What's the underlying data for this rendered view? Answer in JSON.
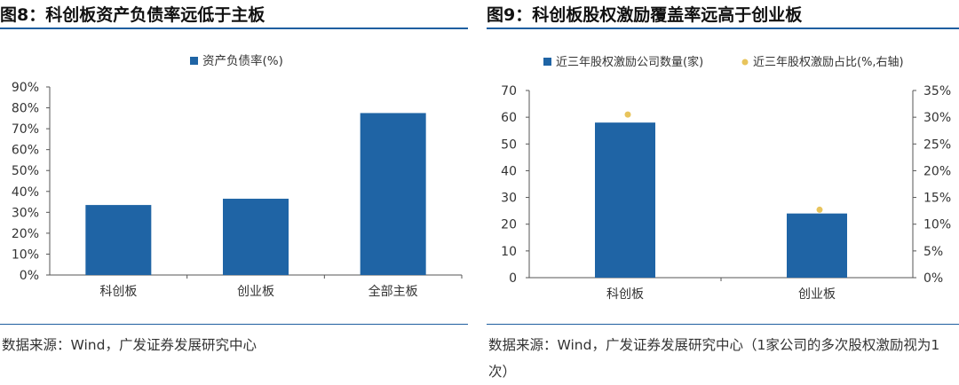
{
  "colors": {
    "bar": "#1f64a5",
    "dot": "#e8c45c",
    "rule": "#1f5fa0"
  },
  "figures": [
    {
      "title": "图8：科创板资产负债率远低于主板",
      "source": "数据来源：Wind，广发证券发展研究中心"
    },
    {
      "title": "图9：科创板股权激励覆盖率远高于创业板",
      "source": "数据来源：Wind，广发证券发展研究中心（1家公司的多次股权激励视为1次）"
    }
  ],
  "chart_data": [
    {
      "type": "bar",
      "categories": [
        "科创板",
        "创业板",
        "全部主板"
      ],
      "series": [
        {
          "name": "资产负债率(%)",
          "values": [
            33.5,
            36.5,
            77.5
          ]
        }
      ],
      "ylim": [
        0,
        90
      ],
      "yticks": [
        "0%",
        "10%",
        "20%",
        "30%",
        "40%",
        "50%",
        "60%",
        "70%",
        "80%",
        "90%"
      ],
      "legend": "top-center"
    },
    {
      "type": "bar",
      "categories": [
        "科创板",
        "创业板"
      ],
      "series": [
        {
          "name": "近三年股权激励公司数量(家)",
          "type": "bar",
          "axis": "left",
          "values": [
            58,
            24
          ]
        },
        {
          "name": "近三年股权激励占比(%,右轴)",
          "type": "scatter",
          "axis": "right",
          "values": [
            30.5,
            12.7
          ]
        }
      ],
      "ylim": [
        0,
        70
      ],
      "y2lim": [
        0,
        35
      ],
      "yticks": [
        "0",
        "10",
        "20",
        "30",
        "40",
        "50",
        "60",
        "70"
      ],
      "y2ticks": [
        "0%",
        "5%",
        "10%",
        "15%",
        "20%",
        "25%",
        "30%",
        "35%"
      ],
      "legend": "top-center"
    }
  ]
}
